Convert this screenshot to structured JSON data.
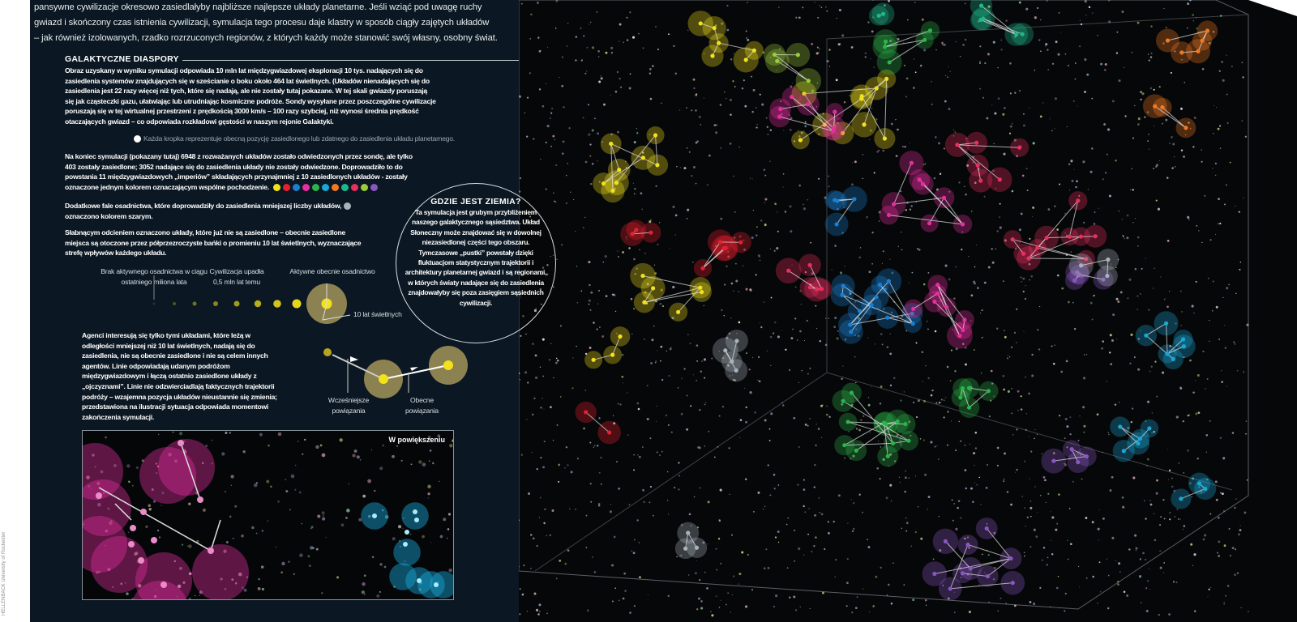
{
  "intro": {
    "lines": [
      "pansywne cywilizacje okresowo zasiedlałyby najbliższe najlepsze układy planetarne. Jeśli wziąć pod uwagę ruchy",
      "gwiazd i skończony czas istnienia cywilizacji, symulacja tego procesu daje klastry w sposób ciągły zajętych układów",
      "– jak również izolowanych, rzadko rozrzuconych regionów, z których każdy może stanowić swój własny, osobny świat."
    ]
  },
  "section": {
    "title": "GALAKTYCZNE DIASPORY",
    "paragraph1": "Obraz uzyskany w wyniku symulacji odpowiada 10 mln lat międzygwiazdowej eksploracji 10 tys. nadających się do zasiedlenia systemów znajdujących się w sześcianie o boku około 464 lat świetlnych. (Układów nienadających się do zasiedlenia jest 22 razy więcej niż tych, które się nadają, ale nie zostały tutaj pokazane. W tej skali gwiazdy poruszają się jak cząsteczki gazu, ułatwiając lub utrudniając kosmiczne podróże. Sondy wysyłane przez poszczególne cywilizacje poruszają się w tej wirtualnej przestrzeni z prędkością 3000 km/s – 100 razy szybciej, niż wynosi średnia prędkość otaczających gwiazd – co odpowiada rozkładowi gęstości w naszym rejonie Galaktyki.",
    "dot_note": "Każda kropka reprezentuje obecną pozycję zasiedlonego lub zdatnego do zasiedlenia układu planetarnego.",
    "paragraph2": "Na koniec symulacji (pokazany tutaj) 6948 z rozważanych układów zostało odwiedzonych przez sondę, ale tylko 403 zostały zasiedlone; 3052 nadające się do zasiedlenia układy nie zostały odwiedzone. Doprowadziło to do powstania 11 międzygwiazdowych „imperiów” składających przynajmniej z 10 zasiedlonych układów - zostały oznaczone jednym kolorem oznaczającym wspólne pochodzenie.",
    "paragraph3": "Dodatkowe fale osadnictwa, które doprowadziły do zasiedlenia mniejszej liczby układów,",
    "paragraph3b": "oznaczono kolorem szarym.",
    "paragraph4": "Słabnącym odcieniem oznaczono układy, które już nie są zasiedlone – obecnie zasiedlone miejsca są otoczone przez półprzezroczyste bańki o promieniu 10 lat świetlnych, wyznaczające strefę wpływów każdego układu.",
    "paragraph5": "Agenci interesują się tylko tymi układami, które leżą w odległości mniejszej niż 10 lat świetlnych, nadają się do zasiedlenia, nie są obecnie zasiedlone i nie są celem innych agentów. Linie odpowiadają udanym podróżom międzygwiazdowym i łączą ostatnio zasiedlone układy z „ojczyznami”. Linie nie odzwierciadlają faktycznych trajektorii podróży – wzajemna pozycja układów nieustannie się zmienia; przedstawiona na ilustracji sytuacja odpowiada momentowi zakończenia symulacji."
  },
  "empire_colors": [
    "#f2e21c",
    "#e5202e",
    "#1a7fd0",
    "#e62ea0",
    "#2ab54a",
    "#18a8d8",
    "#f07a22",
    "#1fb88a",
    "#e8305f",
    "#9ccc3a",
    "#8a56c0"
  ],
  "gray_color": "#a8b4bd",
  "legend": {
    "no_activity": "Brak aktywnego osadnictwa w ciągu ostatniego miliona lata",
    "collapsed": "Cywilizacja upadła 0,5 mln lat temu",
    "active": "Aktywne obecnie osadnictwo",
    "radius": "10 lat świetlnych",
    "earlier_links": "Wcześniejsze powiązania",
    "current_links": "Obecne powiązania"
  },
  "earth_box": {
    "title": "GDZIE JEST ZIEMIA?",
    "text": "Ta symulacja jest grubym przybliżeniem naszego galaktycznego sąsiedztwa. Układ Słoneczny może znajdować się w dowolnej niezasiedlonej części tego obszaru. Tymczasowe „pustki” powstały dzięki fluktuacjom statystycznym trajektorii i architektury planetarnej gwiazd i są regionami, w których światy nadające się do zasiedlenia znajdowałyby się poza zasięgiem sąsiednich cywilizacji."
  },
  "inset": {
    "label": "W powiększeniu"
  },
  "credit": "HELLENBACK University of Rochester"
}
